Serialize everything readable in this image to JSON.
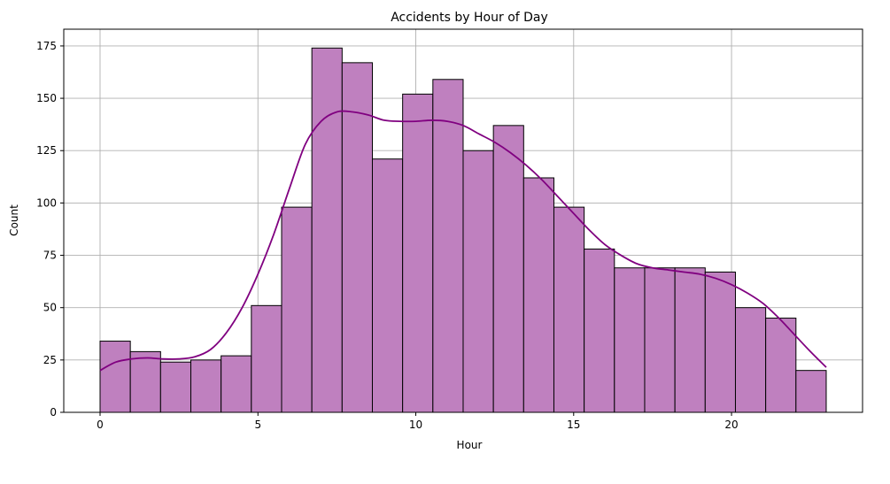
{
  "chart_data": {
    "type": "bar",
    "title": "Accidents by Hour of Day",
    "xlabel": "Hour",
    "ylabel": "Count",
    "xlim": [
      -1.15,
      24.15
    ],
    "ylim": [
      0,
      183
    ],
    "grid": true,
    "bin_start": 0,
    "bin_width": 0.9583,
    "values": [
      34,
      29,
      24,
      25,
      27,
      51,
      98,
      174,
      167,
      121,
      152,
      159,
      125,
      137,
      112,
      98,
      78,
      69,
      69,
      69,
      67,
      50,
      45,
      20
    ],
    "xticks": [
      0,
      5,
      10,
      15,
      20
    ],
    "yticks": [
      0,
      25,
      50,
      75,
      100,
      125,
      150,
      175
    ],
    "kde": {
      "x": [
        0,
        0.5,
        1,
        1.5,
        2,
        2.5,
        3,
        3.5,
        4,
        4.5,
        5,
        5.5,
        6,
        6.5,
        7,
        7.5,
        8,
        8.5,
        9,
        9.5,
        10,
        10.5,
        11,
        11.5,
        12,
        12.5,
        13,
        13.5,
        14,
        14.5,
        15,
        15.5,
        16,
        16.5,
        17,
        17.5,
        18,
        18.5,
        19,
        19.5,
        20,
        20.5,
        21,
        21.5,
        22,
        22.5,
        23
      ],
      "y": [
        20,
        24,
        25.5,
        26,
        25.5,
        25.5,
        26.5,
        30,
        38,
        50,
        66,
        85,
        107,
        128,
        139,
        143.5,
        143.5,
        142,
        139.5,
        139,
        139,
        139.5,
        139,
        137,
        133,
        129,
        124,
        118,
        111,
        103,
        95,
        87,
        80,
        75,
        71,
        69,
        68,
        67,
        66,
        64,
        61,
        57,
        52,
        45,
        37,
        29,
        21.5
      ]
    }
  }
}
